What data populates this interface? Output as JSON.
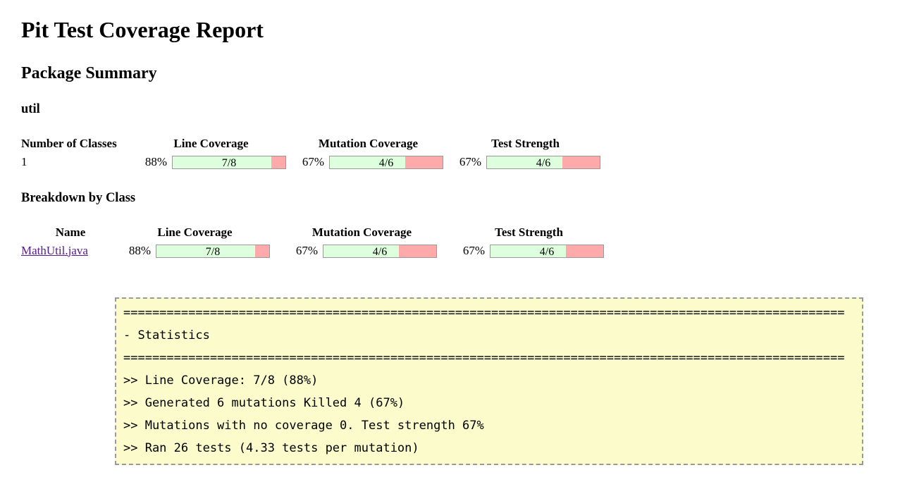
{
  "report": {
    "title": "Pit Test Coverage Report",
    "summary_heading": "Package Summary",
    "package_name": "util",
    "breakdown_heading": "Breakdown by Class"
  },
  "package_table": {
    "headers": {
      "classes": "Number of Classes",
      "line": "Line Coverage",
      "mutation": "Mutation Coverage",
      "strength": "Test Strength"
    },
    "row": {
      "classes": "1",
      "line": {
        "percent": "88%",
        "legend": "7/8",
        "fill": "87.5%"
      },
      "mutation": {
        "percent": "67%",
        "legend": "4/6",
        "fill": "66.7%"
      },
      "strength": {
        "percent": "67%",
        "legend": "4/6",
        "fill": "66.7%"
      }
    }
  },
  "class_table": {
    "headers": {
      "name": "Name",
      "line": "Line Coverage",
      "mutation": "Mutation Coverage",
      "strength": "Test Strength"
    },
    "row": {
      "name": "MathUtil.java",
      "line": {
        "percent": "88%",
        "legend": "7/8",
        "fill": "87.5%"
      },
      "mutation": {
        "percent": "67%",
        "legend": "4/6",
        "fill": "66.7%"
      },
      "strength": {
        "percent": "67%",
        "legend": "4/6",
        "fill": "66.7%"
      }
    }
  },
  "console": {
    "lines": [
      "====================================================================================================",
      "- Statistics",
      "====================================================================================================",
      ">> Line Coverage: 7/8 (88%)",
      ">> Generated 6 mutations Killed 4 (67%)",
      ">> Mutations with no coverage 0. Test strength 67%",
      ">> Ran 26 tests (4.33 tests per mutation)"
    ]
  },
  "colors": {
    "bar_fill": "#DDFFDD",
    "bar_remainder": "#FFAAAA",
    "bar_border": "#999999",
    "console_background": "#FBFBCB",
    "console_border": "#999999",
    "visited_link": "#551A8B"
  }
}
